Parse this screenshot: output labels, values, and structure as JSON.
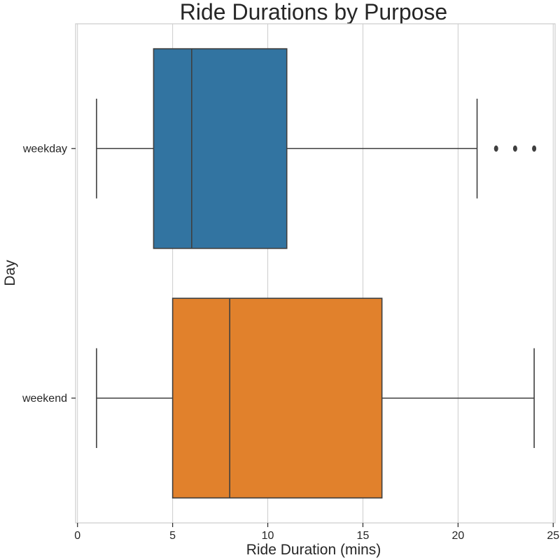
{
  "chart_data": {
    "type": "boxplot",
    "orientation": "horizontal",
    "title": "Ride Durations by Purpose",
    "xlabel": "Ride Duration (mins)",
    "ylabel": "Day",
    "xlim": [
      -0.1,
      25.1
    ],
    "xticks": [
      0,
      5,
      10,
      15,
      20,
      25
    ],
    "xtick_labels": [
      "0",
      "5",
      "10",
      "15",
      "20",
      "25"
    ],
    "grid": "vertical",
    "series": [
      {
        "name": "weekday",
        "color": "#3274a1",
        "whisker_low": 1,
        "q1": 4,
        "median": 6,
        "q3": 11,
        "whisker_high": 21,
        "outliers": [
          22,
          23,
          24
        ]
      },
      {
        "name": "weekend",
        "color": "#e1812c",
        "whisker_low": 1,
        "q1": 5,
        "median": 8,
        "q3": 16,
        "whisker_high": 24,
        "outliers": []
      }
    ]
  }
}
